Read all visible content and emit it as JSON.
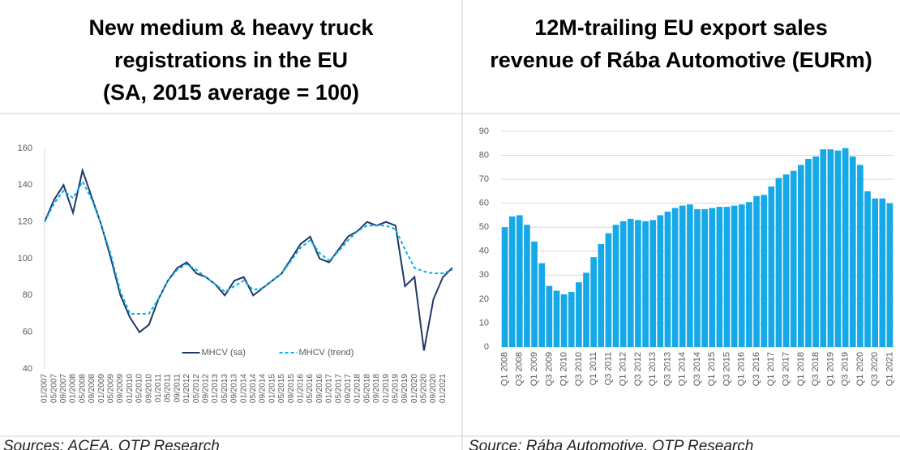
{
  "header": {
    "left": [
      "New medium & heavy truck",
      "registrations in the EU",
      "(SA, 2015 average = 100)"
    ],
    "right": [
      "12M-trailing EU export sales",
      "revenue of Rába Automotive (EURm)"
    ]
  },
  "sources": [
    "Sources: ACEA, OTP Research",
    "Source: Rába Automotive, OTP Research"
  ],
  "chart_data": [
    {
      "type": "line",
      "categories": [
        "01/2007",
        "05/2007",
        "09/2007",
        "01/2008",
        "05/2008",
        "09/2008",
        "01/2009",
        "05/2009",
        "09/2009",
        "01/2010",
        "05/2010",
        "09/2010",
        "01/2011",
        "05/2011",
        "09/2011",
        "01/2012",
        "05/2012",
        "09/2012",
        "01/2013",
        "05/2013",
        "09/2013",
        "01/2014",
        "05/2014",
        "09/2014",
        "01/2015",
        "05/2015",
        "09/2015",
        "01/2016",
        "05/2016",
        "09/2016",
        "01/2017",
        "05/2017",
        "09/2017",
        "01/2018",
        "05/2018",
        "09/2018",
        "01/2019",
        "05/2019",
        "09/2019",
        "01/2020",
        "05/2020",
        "09/2020",
        "01/2021",
        null
      ],
      "series": [
        {
          "name": "MHCV (sa)",
          "color": "#1f3864",
          "dash": false,
          "values": [
            120,
            132,
            140,
            125,
            148,
            133,
            118,
            100,
            80,
            68,
            60,
            64,
            78,
            88,
            95,
            98,
            92,
            90,
            86,
            80,
            88,
            90,
            80,
            84,
            88,
            92,
            100,
            108,
            112,
            100,
            98,
            105,
            112,
            115,
            120,
            118,
            120,
            118,
            85,
            90,
            50,
            78,
            90,
            95
          ]
        },
        {
          "name": "MHCV (trend)",
          "color": "#00b0f0",
          "dash": true,
          "values": [
            120,
            130,
            137,
            133,
            142,
            132,
            118,
            102,
            82,
            70,
            70,
            70,
            78,
            88,
            94,
            97,
            94,
            90,
            86,
            82,
            85,
            88,
            83,
            84,
            88,
            92,
            99,
            106,
            110,
            103,
            99,
            104,
            110,
            115,
            118,
            118,
            118,
            116,
            105,
            95,
            93,
            92,
            92,
            94
          ]
        }
      ],
      "ylim": [
        40,
        160
      ],
      "yticks": [
        40,
        60,
        80,
        100,
        120,
        140,
        160
      ],
      "grid": false,
      "legend": "bottom"
    },
    {
      "type": "bar",
      "color": "#16a9e8",
      "categories": [
        "Q1 2008",
        null,
        "Q3 2008",
        null,
        "Q1 2009",
        null,
        "Q3 2009",
        null,
        "Q1 2010",
        null,
        "Q3 2010",
        null,
        "Q1 2011",
        null,
        "Q3 2011",
        null,
        "Q1 2012",
        null,
        "Q3 2012",
        null,
        "Q1 2013",
        null,
        "Q3 2013",
        null,
        "Q1 2014",
        null,
        "Q3 2014",
        null,
        "Q1 2015",
        null,
        "Q3 2015",
        null,
        "Q1 2016",
        null,
        "Q3 2016",
        null,
        "Q1 2017",
        null,
        "Q3 2017",
        null,
        "Q1 2018",
        null,
        "Q3 2018",
        null,
        "Q1 2019",
        null,
        "Q3 2019",
        null,
        "Q1 2020",
        null,
        "Q3 2020",
        null,
        "Q1 2021"
      ],
      "values": [
        50,
        54.5,
        55,
        51,
        44,
        35,
        25.5,
        23.5,
        22,
        23,
        27,
        31,
        37.5,
        43,
        47.5,
        51,
        52.5,
        53.5,
        53,
        52.5,
        53,
        55,
        56.5,
        58,
        59,
        59.5,
        57.5,
        57.5,
        58,
        58.5,
        58.5,
        59,
        59.5,
        60.5,
        63,
        63.5,
        67,
        70.5,
        72,
        73.5,
        76,
        78.5,
        79.5,
        82.5,
        82.5,
        82,
        83,
        79.5,
        76,
        65,
        62,
        62,
        60
      ],
      "ylim": [
        0,
        90
      ],
      "yticks": [
        0,
        10,
        20,
        30,
        40,
        50,
        60,
        70,
        80,
        90
      ],
      "grid": true
    }
  ]
}
